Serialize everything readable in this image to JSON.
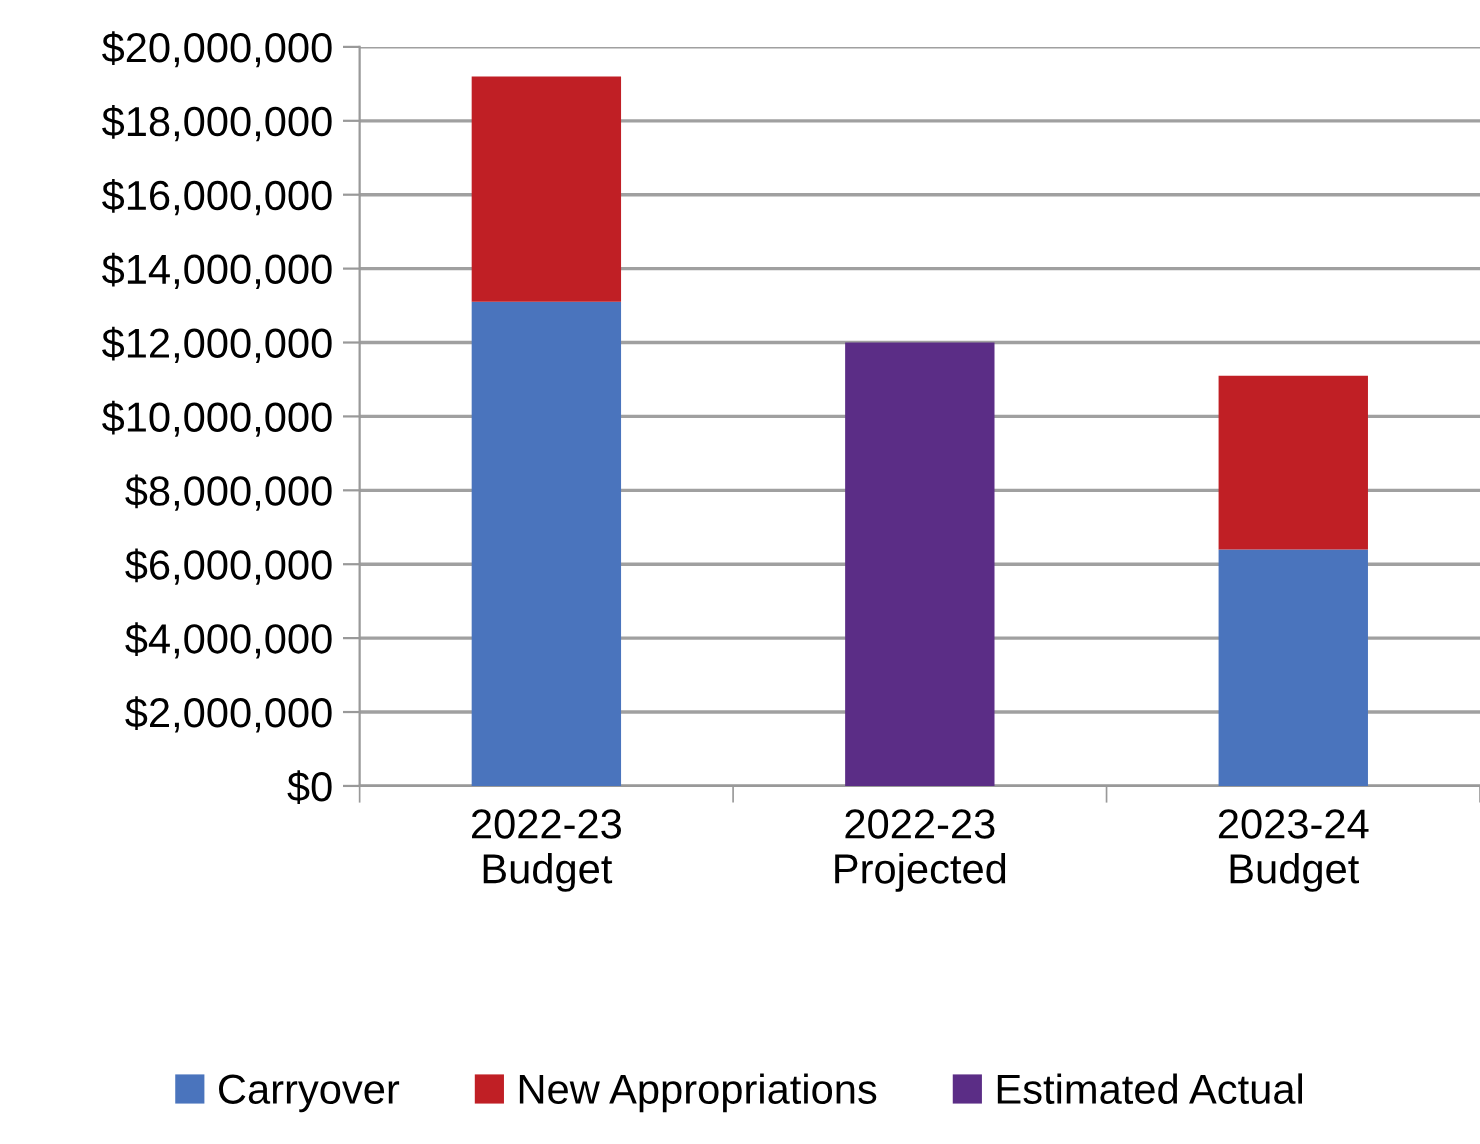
{
  "chart_data": {
    "type": "bar",
    "stacked": true,
    "categories": [
      "2022-23\nBudget",
      "2022-23\nProjected",
      "2023-24\nBudget"
    ],
    "series": [
      {
        "name": "Carryover",
        "color": "#4a74bd",
        "values": [
          13100000,
          null,
          6400000
        ]
      },
      {
        "name": "New Appropriations",
        "color": "#c01f25",
        "values": [
          6100000,
          null,
          4700000
        ]
      },
      {
        "name": "Estimated Actual",
        "color": "#5b2d86",
        "values": [
          null,
          12000000,
          null
        ]
      }
    ],
    "ylim": [
      0,
      20000000
    ],
    "yticks": [
      {
        "value": 0,
        "label": "$0"
      },
      {
        "value": 2000000,
        "label": "$2,000,000"
      },
      {
        "value": 4000000,
        "label": "$4,000,000"
      },
      {
        "value": 6000000,
        "label": "$6,000,000"
      },
      {
        "value": 8000000,
        "label": "$8,000,000"
      },
      {
        "value": 10000000,
        "label": "$10,000,000"
      },
      {
        "value": 12000000,
        "label": "$12,000,000"
      },
      {
        "value": 14000000,
        "label": "$14,000,000"
      },
      {
        "value": 16000000,
        "label": "$16,000,000"
      },
      {
        "value": 18000000,
        "label": "$18,000,000"
      },
      {
        "value": 20000000,
        "label": "$20,000,000"
      }
    ],
    "grid": "y",
    "legend": "bottom"
  }
}
